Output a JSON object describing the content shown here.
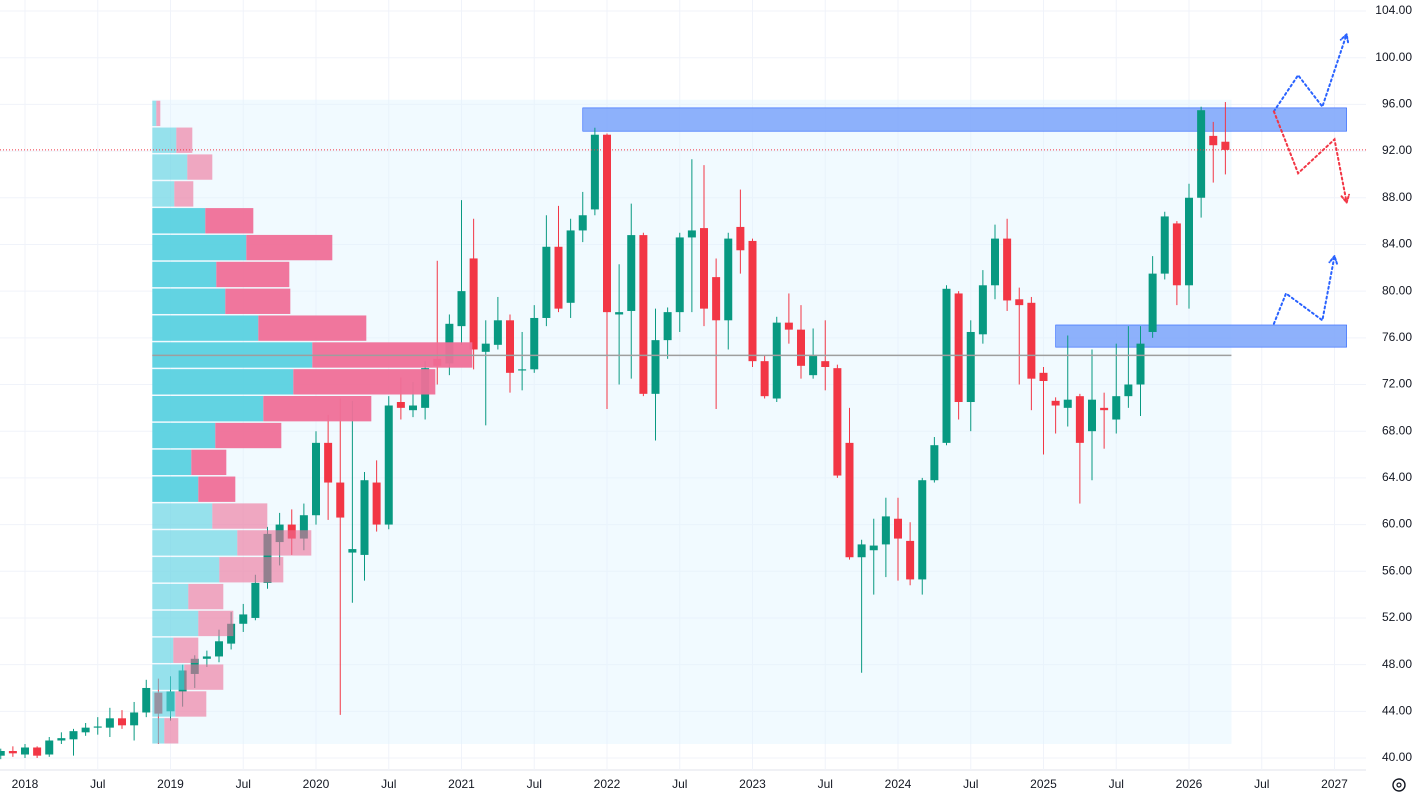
{
  "chart_data": {
    "type": "candlestick",
    "up_color": "#089981",
    "down_color": "#f23645",
    "x": [
      "2017-11",
      "2017-12",
      "2018-01",
      "2018-02",
      "2018-03",
      "2018-04",
      "2018-05",
      "2018-06",
      "2018-07",
      "2018-08",
      "2018-09",
      "2018-10",
      "2018-11",
      "2018-12",
      "2019-01",
      "2019-02",
      "2019-03",
      "2019-04",
      "2019-05",
      "2019-06",
      "2019-07",
      "2019-08",
      "2019-09",
      "2019-10",
      "2019-11",
      "2019-12",
      "2020-01",
      "2020-02",
      "2020-03",
      "2020-04",
      "2020-05",
      "2020-06",
      "2020-07",
      "2020-08",
      "2020-09",
      "2020-10",
      "2020-11",
      "2020-12",
      "2021-01",
      "2021-02",
      "2021-03",
      "2021-04",
      "2021-05",
      "2021-06",
      "2021-07",
      "2021-08",
      "2021-09",
      "2021-10",
      "2021-11",
      "2021-12",
      "2022-01",
      "2022-02",
      "2022-03",
      "2022-04",
      "2022-05",
      "2022-06",
      "2022-07",
      "2022-08",
      "2022-09",
      "2022-10",
      "2022-11",
      "2022-12",
      "2023-01",
      "2023-02",
      "2023-03",
      "2023-04",
      "2023-05",
      "2023-06",
      "2023-07",
      "2023-08",
      "2023-09",
      "2023-10",
      "2023-11",
      "2023-12",
      "2024-01",
      "2024-02",
      "2024-03",
      "2024-04",
      "2024-05",
      "2024-06",
      "2024-07",
      "2024-08",
      "2024-09",
      "2024-10",
      "2024-11",
      "2024-12",
      "2025-01",
      "2025-02",
      "2025-03",
      "2025-04",
      "2025-05",
      "2025-06",
      "2025-07",
      "2025-08",
      "2025-09",
      "2025-10",
      "2025-11",
      "2025-12",
      "2026-01",
      "2026-02",
      "2026-03",
      "2026-04"
    ],
    "open": [
      40.2,
      40.6,
      40.3,
      40.9,
      40.3,
      41.5,
      41.6,
      42.2,
      42.6,
      42.6,
      43.4,
      42.8,
      43.9,
      45.6,
      44.0,
      45.7,
      47.2,
      48.5,
      48.7,
      49.8,
      51.5,
      52.0,
      55.0,
      58.5,
      60.0,
      58.8,
      60.8,
      67.0,
      63.6,
      57.6,
      57.4,
      63.6,
      60.0,
      70.5,
      69.8,
      70.0,
      74.2,
      73.8,
      77.0,
      82.8,
      74.8,
      75.4,
      77.5,
      73.2,
      73.3,
      77.7,
      83.8,
      79.0,
      85.2,
      87.0,
      93.4,
      78.0,
      78.3,
      84.8,
      71.2,
      75.8,
      78.2,
      84.6,
      85.4,
      81.2,
      77.5,
      85.5,
      84.3,
      74.0,
      70.8,
      77.3,
      76.7,
      72.8,
      74.0,
      73.4,
      67.0,
      57.2,
      57.8,
      58.3,
      60.5,
      58.6,
      55.3,
      63.8,
      67.0,
      79.8,
      70.5,
      76.3,
      80.5,
      84.5,
      79.3,
      79.0,
      73.0,
      70.6,
      70.0,
      71.0,
      68.0,
      70.0,
      69.0,
      71.0,
      72.0,
      76.5,
      81.5,
      85.8,
      80.5,
      88.0,
      93.3,
      92.8
    ],
    "high": [
      40.8,
      41.0,
      41.2,
      41.0,
      41.8,
      42.2,
      42.5,
      43.0,
      43.5,
      44.3,
      44.1,
      44.8,
      46.7,
      46.8,
      47.0,
      48.0,
      48.8,
      49.2,
      51.0,
      52.5,
      53.2,
      55.7,
      59.8,
      61.0,
      61.3,
      61.8,
      68.0,
      69.4,
      70.8,
      70.6,
      64.5,
      65.5,
      71.0,
      72.6,
      72.2,
      74.0,
      82.6,
      78.0,
      87.8,
      86.2,
      77.5,
      79.5,
      78.0,
      76.5,
      78.8,
      86.5,
      87.3,
      86.2,
      88.5,
      94.0,
      93.5,
      82.3,
      87.5,
      85.0,
      78.5,
      78.6,
      85.0,
      91.3,
      90.8,
      82.8,
      85.0,
      88.7,
      84.5,
      74.5,
      77.8,
      79.8,
      78.8,
      76.8,
      77.5,
      73.7,
      70.0,
      58.7,
      60.5,
      62.3,
      62.3,
      60.2,
      64.0,
      67.5,
      80.5,
      80.0,
      77.5,
      81.8,
      85.7,
      86.2,
      80.3,
      79.5,
      73.5,
      70.9,
      76.2,
      71.2,
      75.0,
      71.3,
      75.5,
      77.0,
      77.0,
      83.0,
      86.8,
      86.0,
      89.2,
      95.8,
      94.5,
      96.2
    ],
    "low": [
      39.9,
      40.1,
      40.0,
      40.0,
      40.1,
      41.2,
      40.2,
      41.9,
      42.0,
      41.8,
      42.5,
      41.5,
      43.5,
      41.2,
      43.2,
      44.4,
      46.0,
      47.8,
      48.2,
      49.3,
      50.8,
      51.8,
      54.5,
      56.5,
      57.4,
      57.8,
      60.0,
      60.4,
      43.7,
      53.3,
      55.2,
      59.4,
      59.6,
      69.0,
      69.2,
      69.0,
      72.0,
      72.8,
      75.4,
      73.3,
      68.5,
      75.0,
      71.3,
      71.5,
      73.0,
      77.0,
      78.2,
      77.7,
      84.2,
      86.5,
      69.9,
      72.0,
      72.5,
      71.0,
      67.2,
      74.2,
      76.5,
      78.2,
      77.0,
      69.9,
      75.0,
      81.5,
      73.5,
      70.8,
      70.5,
      75.5,
      72.5,
      72.5,
      71.5,
      64.0,
      57.0,
      47.3,
      54.0,
      55.5,
      55.2,
      54.8,
      54.0,
      63.6,
      66.8,
      69.0,
      68.0,
      75.5,
      79.3,
      78.3,
      72.0,
      69.8,
      66.0,
      67.8,
      68.4,
      61.8,
      63.8,
      66.5,
      67.8,
      70.0,
      69.3,
      76.0,
      81.0,
      78.8,
      78.5,
      86.3,
      89.3,
      90.0
    ],
    "close": [
      40.6,
      40.4,
      40.9,
      40.2,
      41.5,
      41.7,
      42.3,
      42.6,
      42.7,
      43.4,
      42.8,
      43.9,
      46.0,
      43.8,
      45.7,
      47.5,
      48.5,
      48.7,
      50.0,
      51.5,
      52.3,
      55.0,
      59.2,
      60.0,
      58.8,
      60.8,
      67.0,
      63.6,
      60.6,
      57.9,
      63.8,
      60.0,
      70.2,
      70.0,
      70.2,
      73.4,
      73.6,
      77.2,
      80.0,
      75.0,
      75.5,
      77.5,
      73.0,
      73.3,
      77.7,
      83.8,
      78.5,
      85.2,
      86.5,
      93.4,
      78.2,
      78.2,
      84.8,
      71.2,
      75.8,
      78.2,
      84.6,
      85.2,
      78.5,
      77.5,
      84.5,
      83.5,
      74.0,
      71.0,
      77.3,
      76.7,
      73.6,
      74.5,
      73.5,
      64.2,
      57.2,
      58.3,
      58.2,
      60.7,
      58.8,
      55.3,
      63.8,
      66.8,
      80.2,
      70.5,
      76.5,
      80.5,
      84.5,
      79.2,
      78.8,
      72.5,
      72.3,
      70.2,
      70.7,
      67.0,
      70.7,
      69.8,
      71.0,
      72.0,
      75.5,
      81.5,
      86.4,
      80.5,
      88.0,
      95.5,
      92.5,
      92.1
    ],
    "xlim": [
      "2017-11",
      "2027-04"
    ],
    "xticks": [
      {
        "value": "2018-01",
        "label": "2018"
      },
      {
        "value": "2018-07",
        "label": "Jul"
      },
      {
        "value": "2019-01",
        "label": "2019"
      },
      {
        "value": "2019-07",
        "label": "Jul"
      },
      {
        "value": "2020-01",
        "label": "2020"
      },
      {
        "value": "2020-07",
        "label": "Jul"
      },
      {
        "value": "2021-01",
        "label": "2021"
      },
      {
        "value": "2021-07",
        "label": "Jul"
      },
      {
        "value": "2022-01",
        "label": "2022"
      },
      {
        "value": "2022-07",
        "label": "Jul"
      },
      {
        "value": "2023-01",
        "label": "2023"
      },
      {
        "value": "2023-07",
        "label": "Jul"
      },
      {
        "value": "2024-01",
        "label": "2024"
      },
      {
        "value": "2024-07",
        "label": "Jul"
      },
      {
        "value": "2025-01",
        "label": "2025"
      },
      {
        "value": "2025-07",
        "label": "Jul"
      },
      {
        "value": "2026-01",
        "label": "2026"
      },
      {
        "value": "2026-07",
        "label": "Jul"
      },
      {
        "value": "2027-01",
        "label": "2027"
      }
    ],
    "ylim": [
      40,
      104
    ],
    "yticks": [
      {
        "value": 40,
        "label": "40.00"
      },
      {
        "value": 44,
        "label": "44.00"
      },
      {
        "value": 48,
        "label": "48.00"
      },
      {
        "value": 52,
        "label": "52.00"
      },
      {
        "value": 56,
        "label": "56.00"
      },
      {
        "value": 60,
        "label": "60.00"
      },
      {
        "value": 64,
        "label": "64.00"
      },
      {
        "value": 68,
        "label": "68.00"
      },
      {
        "value": 72,
        "label": "72.00"
      },
      {
        "value": 76,
        "label": "76.00"
      },
      {
        "value": 80,
        "label": "80.00"
      },
      {
        "value": 84,
        "label": "84.00"
      },
      {
        "value": 88,
        "label": "88.00"
      },
      {
        "value": 92,
        "label": "92.00"
      },
      {
        "value": 96,
        "label": "96.00"
      },
      {
        "value": 100,
        "label": "100.00"
      },
      {
        "value": 104,
        "label": "104.00"
      }
    ],
    "grid": true,
    "volume_profile": {
      "start": "2018-11",
      "end": "2026-04",
      "top": 96.4,
      "row_height": 2.3,
      "poc": 74.5,
      "value_area_high": 87.2,
      "value_area_low": 61.9,
      "up_color": "#5ad1e0",
      "down_color": "#ef6f98",
      "up": [
        4,
        24,
        35,
        22,
        53,
        94,
        64,
        73,
        106,
        160,
        141,
        111,
        63,
        39,
        46,
        60,
        85,
        67,
        36,
        46,
        21,
        32,
        23,
        12
      ],
      "down": [
        4,
        16,
        25,
        19,
        48,
        86,
        73,
        65,
        108,
        160,
        142,
        108,
        66,
        35,
        37,
        55,
        74,
        64,
        35,
        35,
        25,
        39,
        31,
        14
      ]
    },
    "zones": [
      {
        "from": "2021-11",
        "to": "2027-02",
        "low": 93.7,
        "high": 95.7,
        "color": "#82a8fb"
      },
      {
        "from": "2025-02",
        "to": "2027-02",
        "low": 75.2,
        "high": 77.1,
        "color": "#82a8fb"
      }
    ],
    "projections": [
      {
        "color": "#2962ff",
        "x": [
          "2026-08",
          "2026-10",
          "2026-12",
          "2027-02"
        ],
        "values": [
          95.4,
          98.5,
          95.8,
          102.0
        ]
      },
      {
        "color": "#f23645",
        "x": [
          "2026-08",
          "2026-10",
          "2027-01",
          "2027-02"
        ],
        "values": [
          95.4,
          90.1,
          93.0,
          87.6
        ]
      },
      {
        "color": "#2962ff",
        "x": [
          "2026-08",
          "2026-09",
          "2026-12",
          "2027-01"
        ],
        "values": [
          77.2,
          79.8,
          77.5,
          83.0
        ]
      }
    ],
    "last_price_line_color": "#f23645"
  }
}
